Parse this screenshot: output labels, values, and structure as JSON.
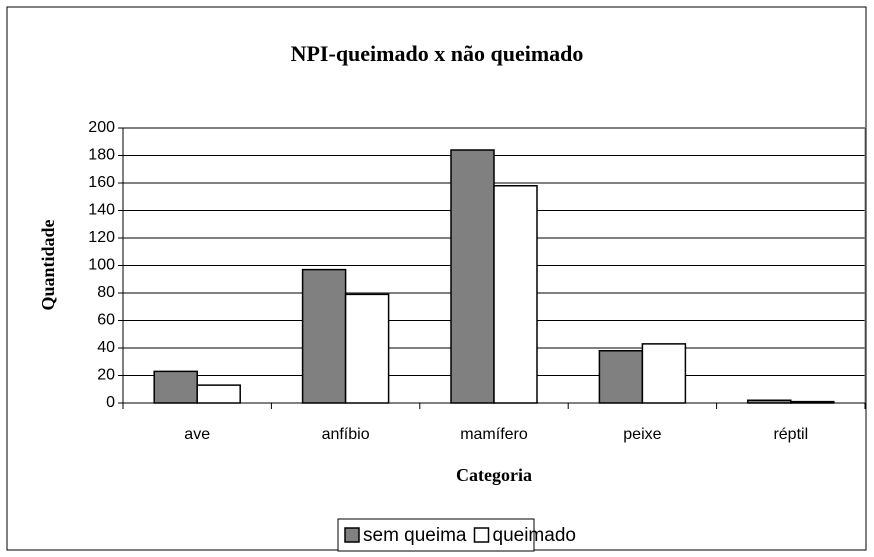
{
  "chart_data": {
    "type": "bar",
    "title": "NPI-queimado x  não queimado",
    "x_label": "Categoria",
    "y_label": "Quantidade",
    "categories": [
      "ave",
      "anfíbio",
      "mamífero",
      "peixe",
      "réptil"
    ],
    "series": [
      {
        "name": "sem queima",
        "color": "#808080",
        "values": [
          23,
          97,
          184,
          38,
          2
        ]
      },
      {
        "name": "queimado",
        "color": "#ffffff",
        "values": [
          13,
          79,
          158,
          43,
          1
        ]
      }
    ],
    "ylim": [
      0,
      200
    ],
    "yticks": [
      0,
      20,
      40,
      60,
      80,
      100,
      120,
      140,
      160,
      180,
      200
    ],
    "grid": true,
    "legend": "bottom"
  }
}
